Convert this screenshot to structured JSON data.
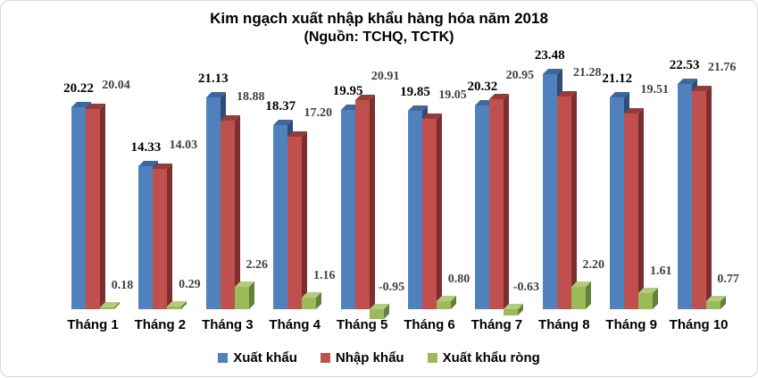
{
  "chart_data": {
    "type": "bar",
    "title": "Kim ngạch xuất nhập khẩu hàng hóa năm 2018",
    "subtitle": "(Nguồn: TCHQ, TCTK)",
    "categories": [
      "Tháng 1",
      "Tháng 2",
      "Tháng 3",
      "Tháng 4",
      "Tháng 5",
      "Tháng 6",
      "Tháng 7",
      "Tháng 8",
      "Tháng 9",
      "Tháng 10"
    ],
    "series": [
      {
        "name": "Xuất khẩu",
        "color": "#4F81BD",
        "values": [
          20.22,
          14.33,
          21.13,
          18.37,
          19.95,
          19.85,
          20.32,
          23.48,
          21.12,
          22.53
        ]
      },
      {
        "name": "Nhập khẩu",
        "color": "#C0504D",
        "values": [
          20.04,
          14.03,
          18.88,
          17.2,
          20.91,
          19.05,
          20.95,
          21.28,
          19.51,
          21.76
        ]
      },
      {
        "name": "Xuất khẩu ròng",
        "color": "#9BBB59",
        "values": [
          0.18,
          0.29,
          2.26,
          1.16,
          -0.95,
          0.8,
          -0.63,
          2.2,
          1.61,
          0.77
        ]
      }
    ],
    "value_format": "2-decimals",
    "data_labels_visible": true,
    "label_colors": {
      "xuat_khau": "#000000",
      "nhap_khau": "#3F3F3F",
      "xuat_khau_rong": "#3F3F3F"
    },
    "style": "3d-clustered-column",
    "legend_position": "bottom",
    "grid": false,
    "y_axis_visible": false,
    "background": "#FFFFFF",
    "border_color": "#D6D6D6"
  }
}
